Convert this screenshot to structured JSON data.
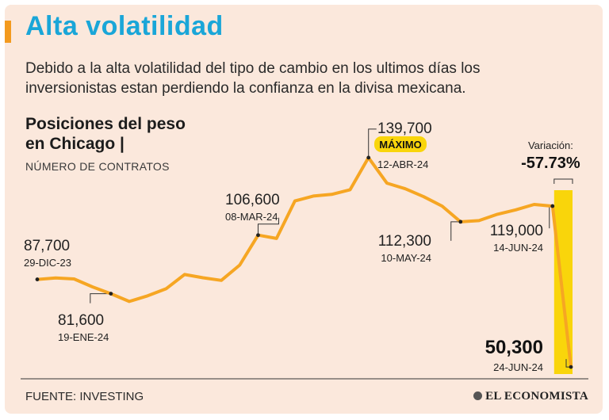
{
  "header": {
    "title": "Alta volatilidad",
    "subtitle": "Debido a la alta volatilidad del tipo de cambio en los ultimos días los inversionistas estan perdiendo la confianza en la divisa mexicana."
  },
  "chart_header": {
    "title": "Posiciones  del peso en Chicago |",
    "subtitle": "NÚMERO DE CONTRATOS"
  },
  "footer": {
    "source": "FUENTE: INVESTING",
    "logo": "EL ECONOMISTA"
  },
  "colors": {
    "line": "#f6a623",
    "highlight_bar": "#f9d50b",
    "title": "#1aa6d8",
    "badge": "#f9d50b"
  },
  "chart_data": {
    "type": "line",
    "title": "Posiciones del peso en Chicago",
    "ylabel": "Número de contratos",
    "ylim": [
      50000,
      140000
    ],
    "values": [
      87700,
      88300,
      87900,
      84500,
      81600,
      78300,
      80700,
      83700,
      89800,
      88400,
      87300,
      93800,
      106600,
      105200,
      121200,
      123300,
      124000,
      126000,
      139700,
      128800,
      126400,
      123000,
      119000,
      112300,
      112800,
      115500,
      117400,
      119700,
      119000,
      50300
    ],
    "annotations": [
      {
        "index": 0,
        "value": "87,700",
        "date": "29-DIC-23"
      },
      {
        "index": 4,
        "value": "81,600",
        "date": "19-ENE-24"
      },
      {
        "index": 12,
        "value": "106,600",
        "date": "08-MAR-24"
      },
      {
        "index": 18,
        "value": "139,700",
        "date": "12-ABR-24",
        "badge": "MÁXIMO"
      },
      {
        "index": 23,
        "value": "112,300",
        "date": "10-MAY-24"
      },
      {
        "index": 28,
        "value": "119,000",
        "date": "14-JUN-24"
      },
      {
        "index": 29,
        "value": "50,300",
        "date": "24-JUN-24"
      }
    ],
    "variation": {
      "label": "Variación:",
      "value": "-57.73%"
    }
  }
}
